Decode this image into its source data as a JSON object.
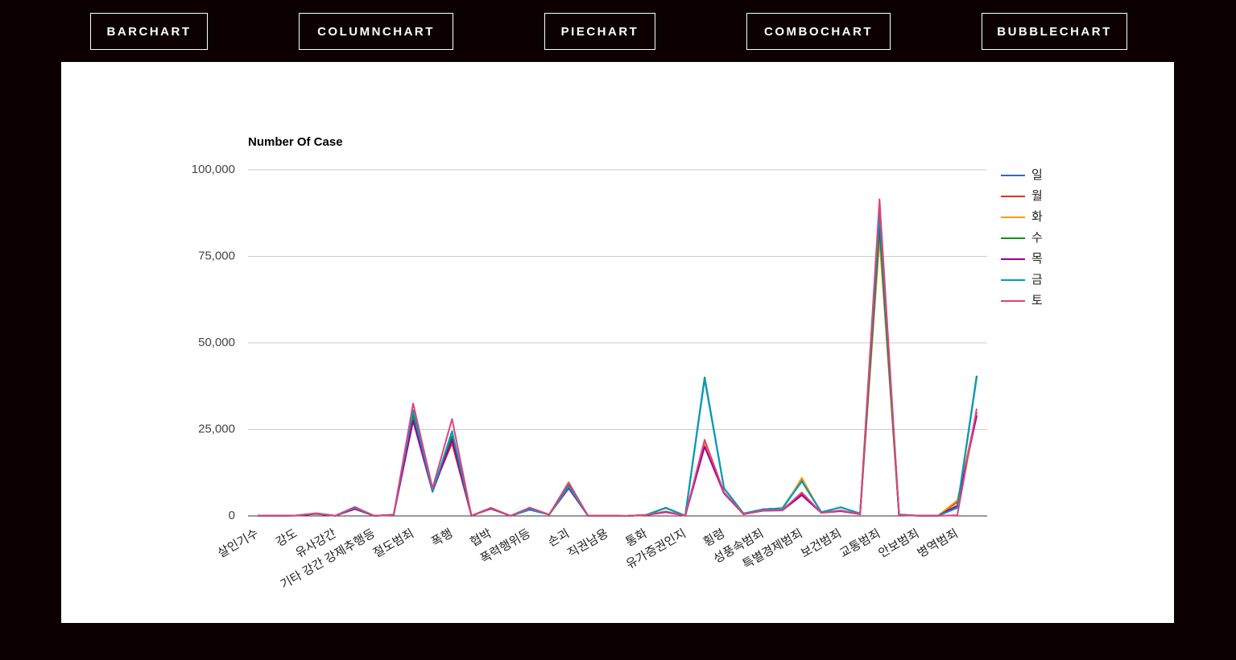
{
  "nav": {
    "buttons": [
      "BARCHART",
      "COLUMNCHART",
      "PIECHART",
      "COMBOCHART",
      "BUBBLECHART"
    ]
  },
  "chart_data": {
    "type": "line",
    "title": "Number Of Case",
    "categories": [
      "살인기수",
      null,
      "강도",
      null,
      "유사강간",
      null,
      "기타 강간 강제추행등",
      null,
      "절도범죄",
      null,
      "폭행",
      null,
      "협박",
      null,
      "폭력행위등",
      null,
      "손괴",
      null,
      "직권남용",
      null,
      "통화",
      null,
      "유가증권인지",
      null,
      "횡령",
      null,
      "성풍속범죄",
      null,
      "특별경제범죄",
      null,
      "보건범죄",
      null,
      "교통범죄",
      null,
      "안보범죄",
      null,
      "병역범죄",
      null
    ],
    "series": [
      {
        "name": "일",
        "color": "#3366cc",
        "values": [
          50,
          20,
          150,
          700,
          80,
          2300,
          30,
          350,
          28500,
          7000,
          23000,
          40,
          2300,
          20,
          1800,
          400,
          8500,
          30,
          20,
          10,
          300,
          2300,
          80,
          40000,
          8000,
          700,
          1900,
          2200,
          10500,
          1100,
          2500,
          700,
          88000,
          400,
          60,
          30,
          2500,
          40500
        ]
      },
      {
        "name": "월",
        "color": "#dc3912",
        "values": [
          40,
          20,
          120,
          650,
          70,
          2200,
          30,
          300,
          30000,
          7800,
          21000,
          40,
          2200,
          20,
          2000,
          400,
          9200,
          30,
          20,
          10,
          250,
          1200,
          60,
          21000,
          6800,
          500,
          1600,
          1700,
          6500,
          900,
          1500,
          500,
          85000,
          300,
          50,
          30,
          4000,
          30000
        ]
      },
      {
        "name": "화",
        "color": "#ff9900",
        "values": [
          40,
          20,
          110,
          600,
          70,
          2100,
          30,
          300,
          29500,
          7500,
          22000,
          40,
          2200,
          20,
          1900,
          400,
          9000,
          30,
          20,
          10,
          250,
          1200,
          60,
          21000,
          6500,
          500,
          1600,
          1700,
          11000,
          900,
          1500,
          500,
          80000,
          300,
          50,
          30,
          4500,
          29000
        ]
      },
      {
        "name": "수",
        "color": "#109618",
        "values": [
          50,
          20,
          150,
          700,
          80,
          2300,
          30,
          350,
          29000,
          7200,
          23000,
          40,
          2300,
          20,
          1800,
          400,
          8800,
          30,
          20,
          10,
          300,
          2300,
          80,
          40000,
          8000,
          700,
          1900,
          2200,
          10000,
          1100,
          2500,
          700,
          83000,
          400,
          60,
          30,
          2500,
          40500
        ]
      },
      {
        "name": "목",
        "color": "#990099",
        "values": [
          40,
          20,
          100,
          600,
          70,
          2000,
          30,
          300,
          27500,
          7000,
          22000,
          40,
          2100,
          20,
          1900,
          400,
          8000,
          30,
          20,
          10,
          250,
          1100,
          60,
          20000,
          6500,
          500,
          1500,
          1600,
          6000,
          900,
          1400,
          500,
          86000,
          300,
          50,
          30,
          3000,
          29000
        ]
      },
      {
        "name": "금",
        "color": "#0099c6",
        "values": [
          50,
          20,
          150,
          700,
          80,
          2300,
          30,
          350,
          30500,
          7000,
          24500,
          40,
          2300,
          20,
          1800,
          400,
          8500,
          30,
          20,
          10,
          300,
          2400,
          80,
          39500,
          8000,
          700,
          1900,
          2200,
          10000,
          1100,
          2500,
          700,
          87000,
          400,
          60,
          30,
          2300,
          40000
        ]
      },
      {
        "name": "토",
        "color": "#dd4477",
        "values": [
          40,
          20,
          120,
          800,
          70,
          2600,
          30,
          300,
          32500,
          8000,
          28000,
          40,
          2300,
          20,
          2400,
          400,
          9700,
          30,
          20,
          10,
          250,
          1300,
          60,
          22000,
          6800,
          500,
          1600,
          1700,
          6800,
          900,
          1600,
          500,
          91500,
          300,
          50,
          30,
          200,
          31000
        ]
      }
    ],
    "ylim": [
      0,
      100000
    ],
    "yticks": [
      0,
      {
        "value": 25000,
        "label": "25,000"
      },
      {
        "value": 50000,
        "label": "50,000"
      },
      {
        "value": 75000,
        "label": "75,000"
      },
      {
        "value": 100000,
        "label": "100,000"
      }
    ],
    "grid": true,
    "legend": "right"
  }
}
